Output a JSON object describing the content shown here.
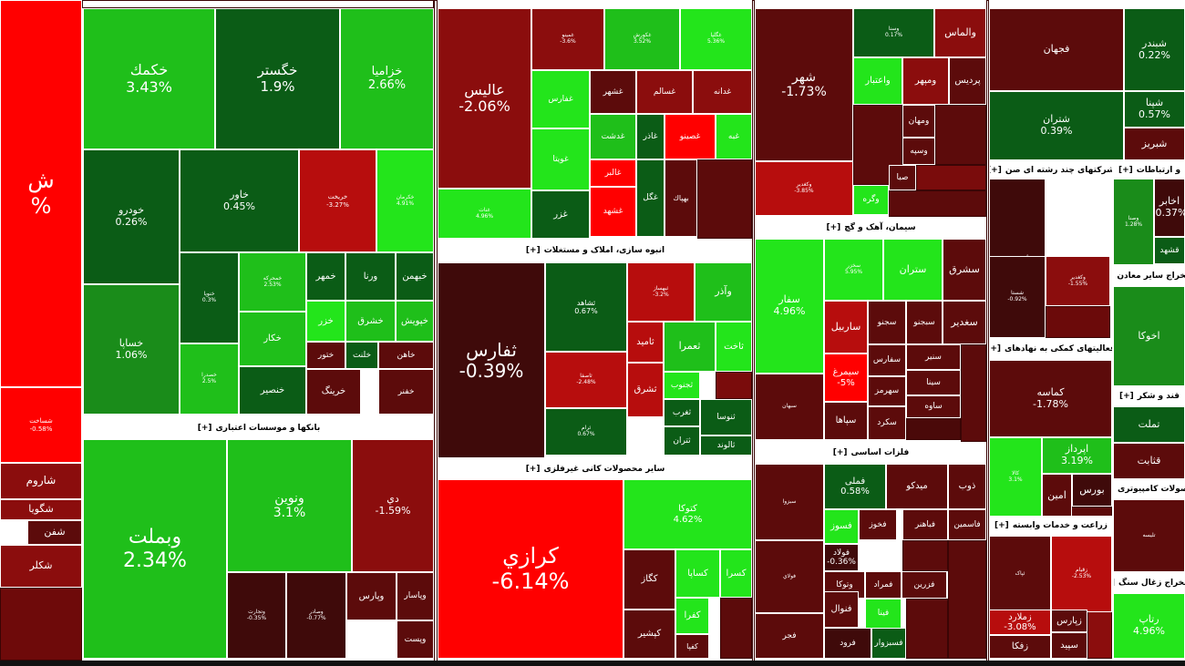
{
  "colors": {
    "strong_up": "#23e51b",
    "up": "#1fbf1a",
    "mild_up": "#1a8c1a",
    "dark_up": "#0b5c16",
    "flat": "#3f0a0a",
    "dark_down": "#5c0b0b",
    "down": "#8b0d0d",
    "mild_down": "#b70d0d",
    "strong_down": "#ff0000"
  },
  "headers": {
    "banks": "بانکها و موسسات اعتباری",
    "construction": "انبوه سازی، املاک و مستغلات",
    "nonmetal": "سایر محصولات کانی غیرفلزی",
    "cement": "سیمان، آهک و گچ",
    "basic_metals": "فلزات اساسی",
    "multi": "شرکتهای چند رشته ای صن",
    "telecom": "و ارتباطات",
    "mining": "استخراج سایر معادن",
    "financial_aux": "فعالیتهای کمکی به نهادهای",
    "sugar": "قند و شکر",
    "computer": "محصولات کامپیوتری",
    "agri": "زراعت و خدمات وابسته",
    "coal": "استخراج زغال سنگ",
    "expand_label": "[+]"
  },
  "tiles": [
    {
      "sym": "ش",
      "pct": "%",
      "c": "strong_down"
    },
    {
      "sym": "شساخت",
      "pct": "-0.58%",
      "c": "strong_down"
    },
    {
      "sym": "شاروم",
      "pct": "",
      "c": "down"
    },
    {
      "sym": "شگویا",
      "pct": "",
      "c": "down"
    },
    {
      "sym": "شفن",
      "pct": "",
      "c": "dark_down"
    },
    {
      "sym": "شکلر",
      "pct": "",
      "c": "down"
    },
    {
      "sym": "خکمك",
      "pct": "3.43%",
      "c": "up"
    },
    {
      "sym": "خگستر",
      "pct": "1.9%",
      "c": "dark_up"
    },
    {
      "sym": "خزامیا",
      "pct": "2.66%",
      "c": "up"
    },
    {
      "sym": "خودرو",
      "pct": "0.26%",
      "c": "dark_up"
    },
    {
      "sym": "خاور",
      "pct": "0.45%",
      "c": "dark_up"
    },
    {
      "sym": "خریخت",
      "pct": "-3.27%",
      "c": "mild_down"
    },
    {
      "sym": "خکرمان",
      "pct": "4.91%",
      "c": "strong_up"
    },
    {
      "sym": "خساپا",
      "pct": "1.06%",
      "c": "mild_up"
    },
    {
      "sym": "خنوپا",
      "pct": "0.3%",
      "c": "dark_up"
    },
    {
      "sym": "خمحرکه",
      "pct": "2.53%",
      "c": "up"
    },
    {
      "sym": "خمهر",
      "pct": "",
      "c": "dark_up"
    },
    {
      "sym": "ورنا",
      "pct": "",
      "c": "dark_up"
    },
    {
      "sym": "خبهمن",
      "pct": "",
      "c": "dark_up"
    },
    {
      "sym": "خزر",
      "pct": "",
      "c": "strong_up"
    },
    {
      "sym": "خشرق",
      "pct": "",
      "c": "up"
    },
    {
      "sym": "خپویش",
      "pct": "",
      "c": "up"
    },
    {
      "sym": "خکار",
      "pct": "",
      "c": "up"
    },
    {
      "sym": "ختور",
      "pct": "",
      "c": "dark_down"
    },
    {
      "sym": "خلنت",
      "pct": "",
      "c": "dark_up"
    },
    {
      "sym": "خاهن",
      "pct": "",
      "c": "dark_down"
    },
    {
      "sym": "خصدرا",
      "pct": "2.5%",
      "c": "up"
    },
    {
      "sym": "خنصیر",
      "pct": "",
      "c": "dark_up"
    },
    {
      "sym": "خرینگ",
      "pct": "",
      "c": "dark_down"
    },
    {
      "sym": "خفنر",
      "pct": "",
      "c": "dark_down"
    },
    {
      "sym": "وبملت",
      "pct": "2.34%",
      "c": "up"
    },
    {
      "sym": "ونوین",
      "pct": "3.1%",
      "c": "up"
    },
    {
      "sym": "دي",
      "pct": "-1.59%",
      "c": "down"
    },
    {
      "sym": "وتجارت",
      "pct": "-0.35%",
      "c": "flat"
    },
    {
      "sym": "وصادر",
      "pct": "-0.77%",
      "c": "flat"
    },
    {
      "sym": "وپارس",
      "pct": "",
      "c": "dark_down"
    },
    {
      "sym": "وپاسار",
      "pct": "",
      "c": "dark_down"
    },
    {
      "sym": "وپست",
      "pct": "",
      "c": "dark_down"
    },
    {
      "sym": "عالیس",
      "pct": "-2.06%",
      "c": "down"
    },
    {
      "sym": "غمینو",
      "pct": "-3.6%",
      "c": "down"
    },
    {
      "sym": "غکورش",
      "pct": "3.52%",
      "c": "up"
    },
    {
      "sym": "غگلپا",
      "pct": "5.36%",
      "c": "strong_up"
    },
    {
      "sym": "غفارس",
      "pct": "",
      "c": "strong_up"
    },
    {
      "sym": "غشهر",
      "pct": "",
      "c": "dark_down"
    },
    {
      "sym": "غسالم",
      "pct": "",
      "c": "down"
    },
    {
      "sym": "غدانه",
      "pct": "",
      "c": "down"
    },
    {
      "sym": "غدشت",
      "pct": "",
      "c": "up"
    },
    {
      "sym": "غاذر",
      "pct": "",
      "c": "dark_up"
    },
    {
      "sym": "غصینو",
      "pct": "",
      "c": "strong_down"
    },
    {
      "sym": "غبه",
      "pct": "",
      "c": "strong_up"
    },
    {
      "sym": "غویتا",
      "pct": "",
      "c": "strong_up"
    },
    {
      "sym": "غالبر",
      "pct": "",
      "c": "strong_down"
    },
    {
      "sym": "غشهد",
      "pct": "",
      "c": "strong_down"
    },
    {
      "sym": "غزر",
      "pct": "",
      "c": "dark_up"
    },
    {
      "sym": "غگل",
      "pct": "",
      "c": "dark_up"
    },
    {
      "sym": "بهپاك",
      "pct": "",
      "c": "dark_down"
    },
    {
      "sym": "غنات",
      "pct": "4.96%",
      "c": "strong_up"
    },
    {
      "sym": "ثفارس",
      "pct": "-0.39%",
      "c": "flat"
    },
    {
      "sym": "ثشاهد",
      "pct": "0.67%",
      "c": "dark_up"
    },
    {
      "sym": "ثبهساز",
      "pct": "-3.2%",
      "c": "mild_down"
    },
    {
      "sym": "وآذر",
      "pct": "",
      "c": "up"
    },
    {
      "sym": "ثاصفا",
      "pct": "-2.48%",
      "c": "mild_down"
    },
    {
      "sym": "ثامید",
      "pct": "",
      "c": "mild_down"
    },
    {
      "sym": "ثعمرا",
      "pct": "",
      "c": "up"
    },
    {
      "sym": "ثاخت",
      "pct": "",
      "c": "strong_up"
    },
    {
      "sym": "ثشرق",
      "pct": "",
      "c": "mild_down"
    },
    {
      "sym": "ثجنوب",
      "pct": "",
      "c": "strong_up"
    },
    {
      "sym": "ثغرب",
      "pct": "",
      "c": "dark_up"
    },
    {
      "sym": "ثنوسا",
      "pct": "",
      "c": "dark_up"
    },
    {
      "sym": "ثتران",
      "pct": "",
      "c": "dark_up"
    },
    {
      "sym": "ثالوند",
      "pct": "",
      "c": "dark_up"
    },
    {
      "sym": "ثرام",
      "pct": "0.67%",
      "c": "dark_up"
    },
    {
      "sym": "کرازي",
      "pct": "-6.14%",
      "c": "strong_down"
    },
    {
      "sym": "کتوکا",
      "pct": "4.62%",
      "c": "strong_up"
    },
    {
      "sym": "کگاز",
      "pct": "",
      "c": "dark_down"
    },
    {
      "sym": "کساپا",
      "pct": "",
      "c": "strong_up"
    },
    {
      "sym": "کسرا",
      "pct": "",
      "c": "strong_up"
    },
    {
      "sym": "کفرا",
      "pct": "",
      "c": "strong_up"
    },
    {
      "sym": "کپشیر",
      "pct": "",
      "c": "dark_down"
    },
    {
      "sym": "کفپا",
      "pct": "",
      "c": "dark_down"
    },
    {
      "sym": "شهر",
      "pct": "-1.73%",
      "c": "dark_down"
    },
    {
      "sym": "وسنا",
      "pct": "0.17%",
      "c": "dark_up"
    },
    {
      "sym": "والماس",
      "pct": "",
      "c": "down"
    },
    {
      "sym": "واعتبار",
      "pct": "",
      "c": "strong_up"
    },
    {
      "sym": "ومپهر",
      "pct": "",
      "c": "down"
    },
    {
      "sym": "پردیس",
      "pct": "",
      "c": "dark_down"
    },
    {
      "sym": "وکغدیر",
      "pct": "-3.85%",
      "c": "mild_down"
    },
    {
      "sym": "ومهان",
      "pct": "",
      "c": "dark_down"
    },
    {
      "sym": "وسپه",
      "pct": "",
      "c": "dark_down"
    },
    {
      "sym": "صبا",
      "pct": "",
      "c": "dark_down"
    },
    {
      "sym": "وگره",
      "pct": "",
      "c": "strong_up"
    },
    {
      "sym": "سفار",
      "pct": "4.96%",
      "c": "strong_up"
    },
    {
      "sym": "سخزر",
      "pct": "5.95%",
      "c": "strong_up"
    },
    {
      "sym": "ستران",
      "pct": "",
      "c": "strong_up"
    },
    {
      "sym": "سشرق",
      "pct": "",
      "c": "dark_down"
    },
    {
      "sym": "ساربیل",
      "pct": "",
      "c": "mild_down"
    },
    {
      "sym": "سجنو",
      "pct": "",
      "c": "dark_down"
    },
    {
      "sym": "سبجنو",
      "pct": "",
      "c": "dark_down"
    },
    {
      "sym": "سغدیر",
      "pct": "",
      "c": "dark_down"
    },
    {
      "sym": "سبهان",
      "pct": "",
      "c": "dark_down"
    },
    {
      "sym": "سیمرغ",
      "pct": "-5%",
      "c": "strong_down"
    },
    {
      "sym": "سفارس",
      "pct": "",
      "c": "dark_down"
    },
    {
      "sym": "سنیر",
      "pct": "",
      "c": "dark_down"
    },
    {
      "sym": "سپاها",
      "pct": "",
      "c": "dark_down"
    },
    {
      "sym": "سهرمز",
      "pct": "",
      "c": "dark_down"
    },
    {
      "sym": "سینا",
      "pct": "",
      "c": "dark_down"
    },
    {
      "sym": "ساوه",
      "pct": "",
      "c": "dark_down"
    },
    {
      "sym": "سکرد",
      "pct": "",
      "c": "dark_down"
    },
    {
      "sym": "سبزوا",
      "pct": "",
      "c": "dark_down"
    },
    {
      "sym": "فملی",
      "pct": "0.58%",
      "c": "dark_up"
    },
    {
      "sym": "میدکو",
      "pct": "",
      "c": "dark_down"
    },
    {
      "sym": "ذوب",
      "pct": "",
      "c": "dark_down"
    },
    {
      "sym": "فسوز",
      "pct": "",
      "c": "strong_up"
    },
    {
      "sym": "فخوز",
      "pct": "",
      "c": "dark_down"
    },
    {
      "sym": "فباهنر",
      "pct": "",
      "c": "dark_down"
    },
    {
      "sym": "فاسمین",
      "pct": "",
      "c": "dark_down"
    },
    {
      "sym": "فولاي",
      "pct": "",
      "c": "dark_down"
    },
    {
      "sym": "فولاد",
      "pct": "-0.36%",
      "c": "flat"
    },
    {
      "sym": "وتوكا",
      "pct": "",
      "c": "dark_down"
    },
    {
      "sym": "فمراد",
      "pct": "",
      "c": "dark_down"
    },
    {
      "sym": "فزرین",
      "pct": "",
      "c": "dark_down"
    },
    {
      "sym": "فنوال",
      "pct": "",
      "c": "dark_down"
    },
    {
      "sym": "فینا",
      "pct": "",
      "c": "strong_up"
    },
    {
      "sym": "فجر",
      "pct": "",
      "c": "dark_down"
    },
    {
      "sym": "فرود",
      "pct": "",
      "c": "flat"
    },
    {
      "sym": "فسبزوار",
      "pct": "",
      "c": "dark_up"
    },
    {
      "sym": "فجهان",
      "pct": "",
      "c": "dark_down"
    },
    {
      "sym": "شبندر",
      "pct": "0.22%",
      "c": "dark_up"
    },
    {
      "sym": "شتران",
      "pct": "0.39%",
      "c": "dark_up"
    },
    {
      "sym": "شپنا",
      "pct": "0.57%",
      "c": "dark_up"
    },
    {
      "sym": "شبریز",
      "pct": "",
      "c": "dark_down"
    },
    {
      "sym": "شبهرن",
      "pct": "",
      "c": "flat"
    },
    {
      "sym": "شستا",
      "pct": "-0.92%",
      "c": "flat"
    },
    {
      "sym": "وکغدیر",
      "pct": "-1.55%",
      "c": "down"
    },
    {
      "sym": "وصنا",
      "pct": "1.28%",
      "c": "mild_up"
    },
    {
      "sym": "اخابر",
      "pct": "-0.37%",
      "c": "flat"
    },
    {
      "sym": "اخوکا",
      "pct": "",
      "c": "mild_up"
    },
    {
      "sym": "کماسه",
      "pct": "-1.78%",
      "c": "dark_down"
    },
    {
      "sym": "کالا",
      "pct": "3.1%",
      "c": "strong_up"
    },
    {
      "sym": "اپرداز",
      "pct": "3.19%",
      "c": "up"
    },
    {
      "sym": "بورس",
      "pct": "",
      "c": "flat"
    },
    {
      "sym": "امین",
      "pct": "",
      "c": "dark_down"
    },
    {
      "sym": "تملت",
      "pct": "",
      "c": "dark_up"
    },
    {
      "sym": "قثابت",
      "pct": "",
      "c": "dark_down"
    },
    {
      "sym": "قشهد",
      "pct": "",
      "c": "dark_up"
    },
    {
      "sym": "ثپاک",
      "pct": "",
      "c": "dark_down"
    },
    {
      "sym": "زقیام",
      "pct": "-2.53%",
      "c": "mild_down"
    },
    {
      "sym": "زملارد",
      "pct": "-3.08%",
      "c": "mild_down"
    },
    {
      "sym": "زپارس",
      "pct": "",
      "c": "dark_down"
    },
    {
      "sym": "سپید",
      "pct": "",
      "c": "dark_down"
    },
    {
      "sym": "زفکا",
      "pct": "",
      "c": "dark_down"
    },
    {
      "sym": "تلیسه",
      "pct": "",
      "c": "dark_down"
    },
    {
      "sym": "رتاپ",
      "pct": "4.96%",
      "c": "strong_up"
    },
    {
      "sym": "کشرق",
      "pct": "5.36%",
      "c": "up"
    }
  ]
}
